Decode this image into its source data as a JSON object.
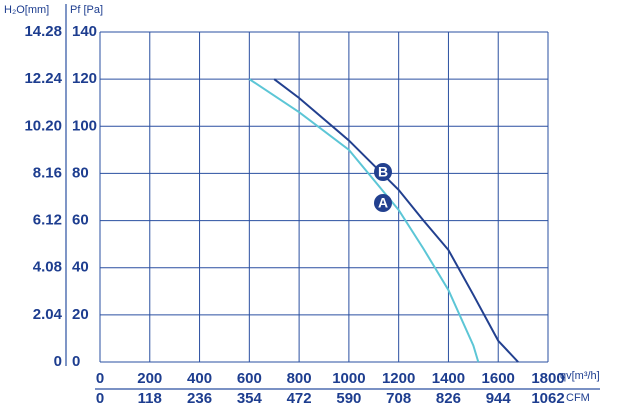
{
  "chart_data": {
    "type": "line",
    "y_axis_label": "Pf [Pa]",
    "y2_axis_label": "H₂O[mm]",
    "x_axis_label": "qv[m³/h]",
    "x2_axis_label": "CFM",
    "xlim": [
      0,
      1800
    ],
    "xticks": [
      0,
      200,
      400,
      600,
      800,
      1000,
      1200,
      1400,
      1600,
      1800
    ],
    "x2lim": [
      0,
      1062
    ],
    "x2ticks": [
      0,
      118,
      236,
      354,
      472,
      590,
      708,
      826,
      944,
      1062
    ],
    "ylim": [
      0,
      140
    ],
    "yticks": [
      0,
      20,
      40,
      60,
      80,
      100,
      120,
      140
    ],
    "y2lim": [
      0,
      14.28
    ],
    "y2ticks": [
      0,
      2.04,
      4.08,
      6.12,
      8.16,
      {
        "value": 10.2,
        "label": "10.20"
      },
      12.24,
      14.28
    ],
    "grid": true,
    "series": [
      {
        "name": "A",
        "color": "#5cc6d6",
        "x": [
          600,
          800,
          1000,
          1200,
          1300,
          1400,
          1500,
          1520
        ],
        "values": [
          120,
          106,
          90,
          64.5,
          48,
          30.5,
          7,
          0
        ]
      },
      {
        "name": "B",
        "color": "#22408f",
        "x": [
          700,
          800,
          1000,
          1200,
          1300,
          1400,
          1500,
          1600,
          1680
        ],
        "values": [
          120,
          112,
          94,
          73,
          60,
          47.5,
          28.5,
          9,
          0
        ]
      }
    ]
  }
}
